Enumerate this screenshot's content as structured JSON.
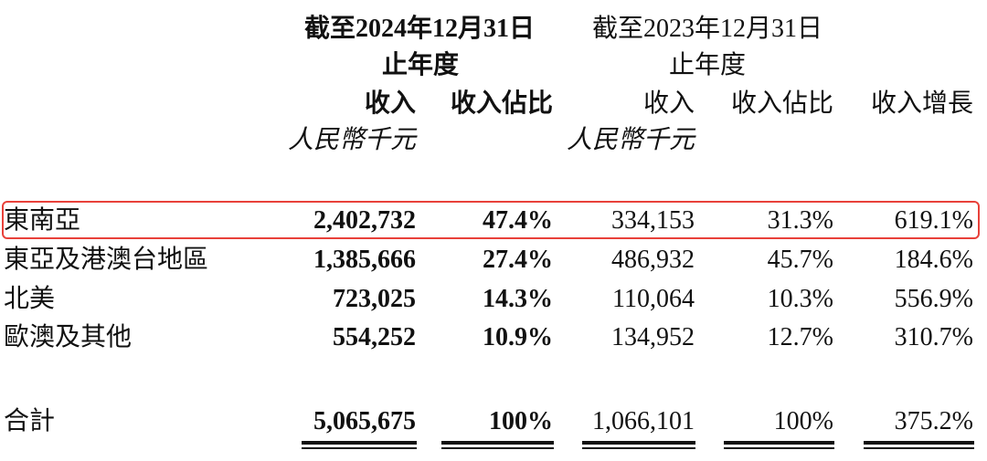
{
  "header": {
    "period_2024": "截至2024年12月31日",
    "period_2024_sub": "止年度",
    "period_2023": "截至2023年12月31日",
    "period_2023_sub": "止年度",
    "columns": [
      "收入",
      "收入佔比",
      "收入",
      "收入佔比",
      "收入增長"
    ],
    "unit_2024": "人民幣千元",
    "unit_2023": "人民幣千元"
  },
  "highlight_color": "#e8413a",
  "rows": [
    {
      "region": "東南亞",
      "rev_2024": "2,402,732",
      "share_2024": "47.4%",
      "rev_2023": "334,153",
      "share_2023": "31.3%",
      "growth": "619.1%",
      "highlighted": true
    },
    {
      "region": "東亞及港澳台地區",
      "rev_2024": "1,385,666",
      "share_2024": "27.4%",
      "rev_2023": "486,932",
      "share_2023": "45.7%",
      "growth": "184.6%"
    },
    {
      "region": "北美",
      "rev_2024": "723,025",
      "share_2024": "14.3%",
      "rev_2023": "110,064",
      "share_2023": "10.3%",
      "growth": "556.9%"
    },
    {
      "region": "歐澳及其他",
      "rev_2024": "554,252",
      "share_2024": "10.9%",
      "rev_2023": "134,952",
      "share_2023": "12.7%",
      "growth": "310.7%"
    }
  ],
  "total": {
    "region": "合計",
    "rev_2024": "5,065,675",
    "share_2024": "100%",
    "rev_2023": "1,066,101",
    "share_2023": "100%",
    "growth": "375.2%"
  }
}
